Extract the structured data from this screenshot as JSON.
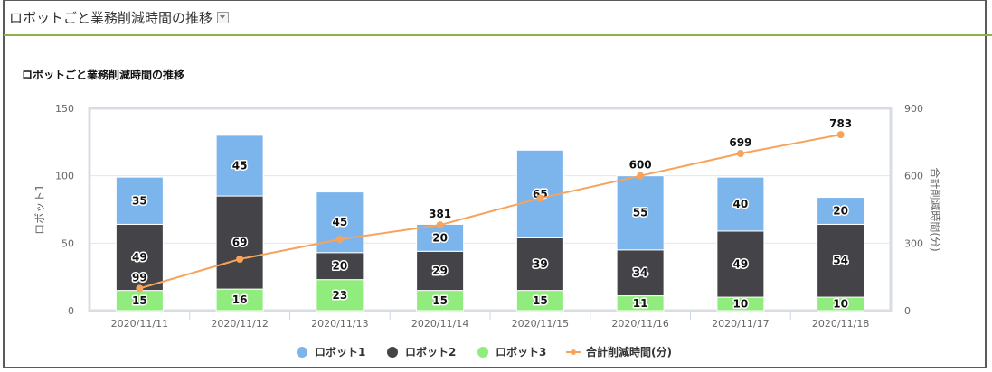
{
  "header": {
    "title": "ロボットごと業務削減時間の推移",
    "menu_icon": "dropdown-arrow-icon"
  },
  "chart_data": {
    "type": "bar",
    "title": "ロボットごと業務削減時間の推移",
    "stacked": true,
    "categories": [
      "2020/11/11",
      "2020/11/12",
      "2020/11/13",
      "2020/11/14",
      "2020/11/15",
      "2020/11/16",
      "2020/11/17",
      "2020/11/18"
    ],
    "series": [
      {
        "name": "ロボット1",
        "type": "bar",
        "color": "#7cb5ec",
        "values": [
          35,
          45,
          45,
          20,
          65,
          55,
          40,
          20
        ]
      },
      {
        "name": "ロボット2",
        "type": "bar",
        "color": "#434348",
        "values": [
          49,
          69,
          20,
          29,
          39,
          34,
          49,
          54
        ]
      },
      {
        "name": "ロボット3",
        "type": "bar",
        "color": "#90ed7d",
        "values": [
          15,
          16,
          23,
          15,
          15,
          11,
          10,
          10
        ]
      },
      {
        "name": "合計削減時間(分)",
        "type": "line",
        "axis": "right",
        "color": "#f7a35c",
        "values": [
          99,
          229,
          317,
          381,
          500,
          600,
          699,
          783
        ],
        "labels_shown": [
          true,
          false,
          false,
          true,
          false,
          true,
          true,
          true
        ]
      }
    ],
    "ylabel": "ロボット1",
    "ylim": [
      0,
      150
    ],
    "yticks": [
      "0",
      "50",
      "100",
      "150"
    ],
    "y2label": "合計削減時間(分)",
    "y2lim": [
      0,
      900
    ],
    "y2ticks": [
      "0",
      "300",
      "600",
      "900"
    ],
    "grid": true,
    "legend": "bottom"
  }
}
